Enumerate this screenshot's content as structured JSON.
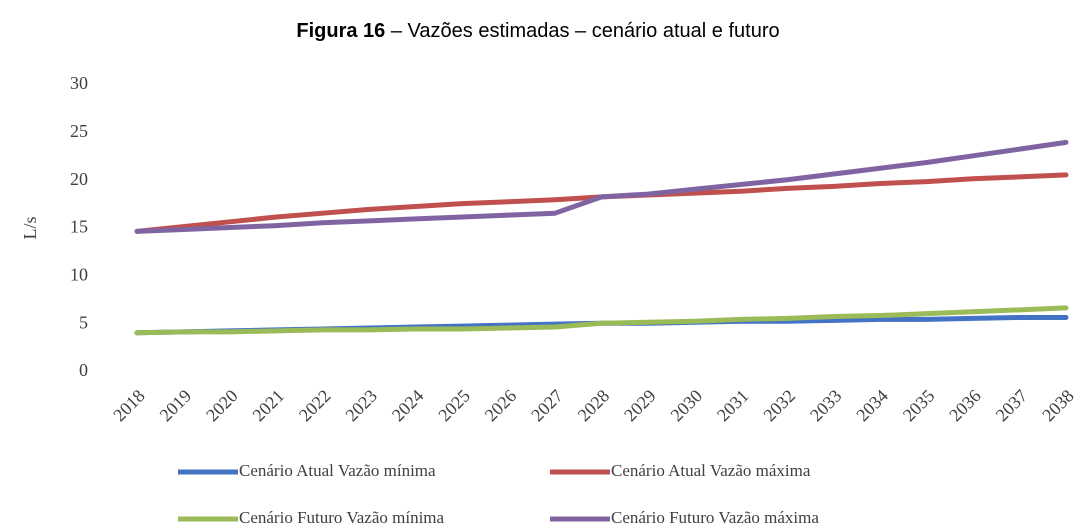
{
  "chart_data": {
    "type": "line",
    "title": {
      "bold": "Figura 16",
      "rest": "– Vazões estimadas – cenário atual e futuro"
    },
    "ylabel": "L/s",
    "categories": [
      "2018",
      "2019",
      "2020",
      "2021",
      "2022",
      "2023",
      "2024",
      "2025",
      "2026",
      "2027",
      "2028",
      "2029",
      "2030",
      "2031",
      "2032",
      "2033",
      "2034",
      "2035",
      "2036",
      "2037",
      "2038"
    ],
    "series": [
      {
        "name": "Cenário Atual Vazão mínima",
        "color": "#4472c4",
        "values": [
          4.1,
          4.2,
          4.3,
          4.4,
          4.5,
          4.6,
          4.7,
          4.8,
          4.9,
          5.0,
          5.1,
          5.1,
          5.2,
          5.3,
          5.3,
          5.4,
          5.5,
          5.5,
          5.6,
          5.7,
          5.7
        ]
      },
      {
        "name": "Cenário Atual Vazão máxima",
        "color": "#c0504d",
        "values": [
          14.7,
          15.2,
          15.7,
          16.2,
          16.6,
          17.0,
          17.3,
          17.6,
          17.8,
          18.0,
          18.3,
          18.5,
          18.7,
          18.9,
          19.2,
          19.4,
          19.7,
          19.9,
          20.2,
          20.4,
          20.6
        ]
      },
      {
        "name": "Cenário Futuro Vazão  mínima",
        "color": "#9bbb59",
        "values": [
          4.1,
          4.2,
          4.2,
          4.3,
          4.4,
          4.4,
          4.5,
          4.5,
          4.6,
          4.7,
          5.1,
          5.2,
          5.3,
          5.5,
          5.6,
          5.8,
          5.9,
          6.1,
          6.3,
          6.5,
          6.7
        ]
      },
      {
        "name": "Cenário Futuro Vazão máxima",
        "color": "#8064a2",
        "values": [
          14.7,
          14.9,
          15.1,
          15.3,
          15.6,
          15.8,
          16.0,
          16.2,
          16.4,
          16.6,
          18.3,
          18.6,
          19.1,
          19.6,
          20.1,
          20.7,
          21.3,
          21.9,
          22.6,
          23.3,
          24.0
        ]
      }
    ],
    "ylim": [
      0,
      30
    ],
    "yticks": [
      0,
      5,
      10,
      15,
      20,
      25,
      30
    ],
    "grid": false
  }
}
